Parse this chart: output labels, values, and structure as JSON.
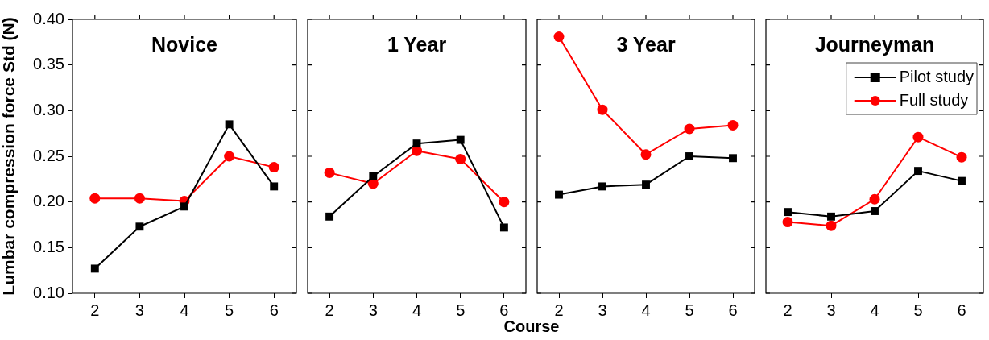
{
  "chart_data": [
    {
      "type": "line",
      "title": "Novice",
      "ylabel": "Lumbar compression force Std (N)",
      "categories": [
        "2",
        "3",
        "4",
        "5",
        "6"
      ],
      "ylim": [
        0.1,
        0.4
      ],
      "yticks": [
        {
          "value": 0.1,
          "label": "0.10"
        },
        0.15,
        {
          "value": 0.2,
          "label": "0.20"
        },
        0.25,
        {
          "value": 0.3,
          "label": "0.30"
        },
        0.35,
        {
          "value": 0.4,
          "label": "0.40"
        }
      ],
      "series": [
        {
          "color": "#000000",
          "marker": "square",
          "values": [
            0.127,
            0.173,
            0.195,
            0.285,
            0.217
          ]
        },
        {
          "color": "#ff0000",
          "marker": "circle",
          "values": [
            0.204,
            0.204,
            0.201,
            0.25,
            0.238
          ]
        }
      ]
    },
    {
      "type": "line",
      "title": "1 Year",
      "xlabel": "Course",
      "tick_labels": "x",
      "categories": [
        "2",
        "3",
        "4",
        "5",
        "6"
      ],
      "ylim": [
        0.1,
        0.4
      ],
      "yticks": [
        0.1,
        0.15,
        0.2,
        0.25,
        0.3,
        0.35,
        0.4
      ],
      "series": [
        {
          "color": "#000000",
          "marker": "square",
          "values": [
            0.184,
            0.228,
            0.264,
            0.268,
            0.172
          ]
        },
        {
          "color": "#ff0000",
          "marker": "circle",
          "values": [
            0.232,
            0.22,
            0.256,
            0.247,
            0.2
          ]
        }
      ]
    },
    {
      "type": "line",
      "title": "3 Year",
      "tick_labels": "x",
      "categories": [
        "2",
        "3",
        "4",
        "5",
        "6"
      ],
      "ylim": [
        0.1,
        0.4
      ],
      "yticks": [
        0.1,
        0.15,
        0.2,
        0.25,
        0.3,
        0.35,
        0.4
      ],
      "series": [
        {
          "color": "#000000",
          "marker": "square",
          "values": [
            0.208,
            0.217,
            0.219,
            0.25,
            0.248
          ]
        },
        {
          "color": "#ff0000",
          "marker": "circle",
          "values": [
            0.381,
            0.301,
            0.252,
            0.28,
            0.284
          ]
        }
      ]
    },
    {
      "type": "line",
      "title": "Journeyman",
      "tick_labels": "x",
      "legend": "top right",
      "categories": [
        "2",
        "3",
        "4",
        "5",
        "6"
      ],
      "ylim": [
        0.1,
        0.4
      ],
      "yticks": [
        0.1,
        0.15,
        0.2,
        0.25,
        0.3,
        0.35,
        0.4
      ],
      "series": [
        {
          "name": "Pilot study",
          "color": "#000000",
          "marker": "square",
          "values": [
            0.189,
            0.184,
            0.19,
            0.234,
            0.223
          ]
        },
        {
          "name": "Full study",
          "color": "#ff0000",
          "marker": "circle",
          "values": [
            0.178,
            0.174,
            0.203,
            0.271,
            0.249
          ]
        }
      ]
    }
  ]
}
